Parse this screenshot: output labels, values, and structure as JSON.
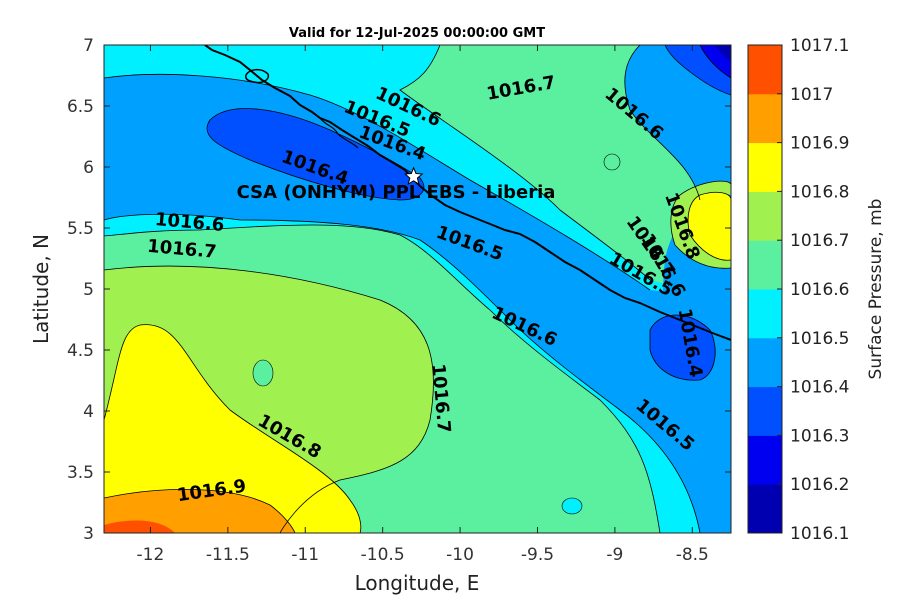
{
  "chart_data": {
    "type": "contour",
    "title": "Valid for 12-Jul-2025 00:00:00 GMT",
    "xlabel": "Longitude, E",
    "ylabel": "Latitude, N",
    "xlim": [
      -12.3,
      -8.25
    ],
    "ylim": [
      3,
      7
    ],
    "xticks": [
      "-12",
      "-11.5",
      "-11",
      "-10.5",
      "-10",
      "-9.5",
      "-9",
      "-8.5"
    ],
    "yticks": [
      "3",
      "3.5",
      "4",
      "4.5",
      "5",
      "5.5",
      "6",
      "6.5",
      "7"
    ],
    "colorbar": {
      "label": "Surface Pressure, mb",
      "ticks": [
        "1016.1",
        "1016.2",
        "1016.3",
        "1016.4",
        "1016.5",
        "1016.6",
        "1016.7",
        "1016.8",
        "1016.9",
        "1017",
        "1017.1"
      ],
      "colors": [
        "#0000b0",
        "#0000f0",
        "#0050ff",
        "#00a0ff",
        "#00f0ff",
        "#5af0a0",
        "#a0f050",
        "#ffff00",
        "#ffa000",
        "#ff5000",
        "#ff0000"
      ]
    },
    "contour_labels": [
      {
        "text": "1016.7",
        "lon": -9.6,
        "lat": 6.6
      },
      {
        "text": "1016.6",
        "lon": -10.35,
        "lat": 6.45
      },
      {
        "text": "1016.5",
        "lon": -10.55,
        "lat": 6.35
      },
      {
        "text": "1016.4",
        "lon": -10.45,
        "lat": 6.15
      },
      {
        "text": "1016.6",
        "lon": -8.9,
        "lat": 6.4
      },
      {
        "text": "1016.4",
        "lon": -10.95,
        "lat": 5.95
      },
      {
        "text": "1016.6",
        "lon": -11.75,
        "lat": 5.5
      },
      {
        "text": "1016.7",
        "lon": -11.8,
        "lat": 5.28
      },
      {
        "text": "1016.5",
        "lon": -9.95,
        "lat": 5.33
      },
      {
        "text": "1016.8",
        "lon": -8.6,
        "lat": 5.5
      },
      {
        "text": "1016.7",
        "lon": -8.8,
        "lat": 5.32
      },
      {
        "text": "1016.6",
        "lon": -8.72,
        "lat": 5.17
      },
      {
        "text": "1016.5",
        "lon": -8.85,
        "lat": 5.08
      },
      {
        "text": "1016.6",
        "lon": -9.6,
        "lat": 4.65
      },
      {
        "text": "1016.4",
        "lon": -8.55,
        "lat": 4.55
      },
      {
        "text": "1016.7",
        "lon": -10.16,
        "lat": 4.1
      },
      {
        "text": "1016.5",
        "lon": -8.7,
        "lat": 3.85
      },
      {
        "text": "1016.8",
        "lon": -11.12,
        "lat": 3.75
      },
      {
        "text": "1016.9",
        "lon": -11.6,
        "lat": 3.3
      }
    ],
    "marker": {
      "label": "CSA (ONHYM) PPL EBS  - Liberia",
      "lon": -10.3,
      "lat": 5.92
    }
  }
}
